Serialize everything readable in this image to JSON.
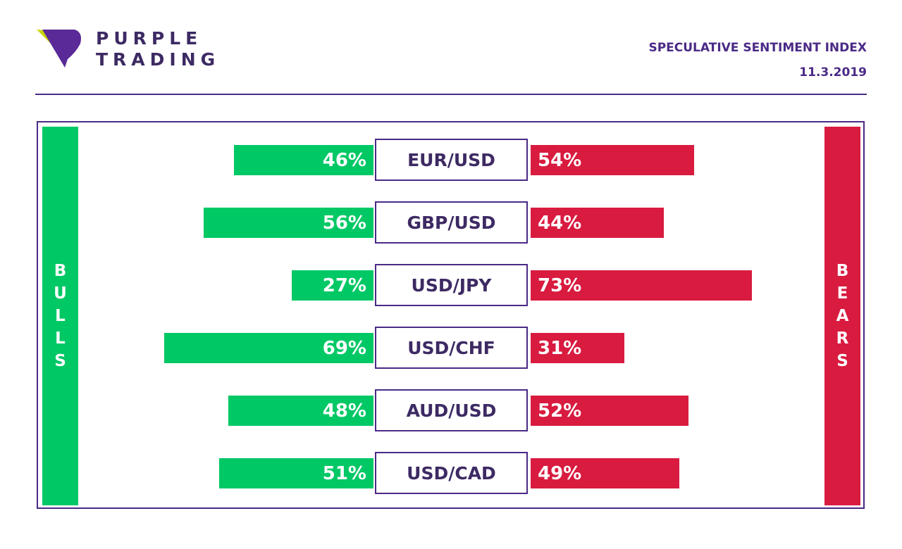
{
  "brand": {
    "line1": "PURPLE",
    "line2": "TRADING"
  },
  "header": {
    "title": "SPECULATIVE SENTIMENT INDEX",
    "date": "11.3.2019"
  },
  "sides": {
    "bulls": "BULLS",
    "bears": "BEARS"
  },
  "colors": {
    "bulls": "#00c865",
    "bears": "#d81b3f",
    "brand": "#4a2a86",
    "logo_accent": "#c8d400"
  },
  "chart_data": {
    "type": "bar",
    "categories": [
      "EUR/USD",
      "GBP/USD",
      "USD/JPY",
      "USD/CHF",
      "AUD/USD",
      "USD/CAD"
    ],
    "series": [
      {
        "name": "BULLS",
        "values": [
          46,
          56,
          27,
          69,
          48,
          51
        ],
        "labels": [
          "46%",
          "56%",
          "27%",
          "69%",
          "48%",
          "51%"
        ]
      },
      {
        "name": "BEARS",
        "values": [
          54,
          44,
          73,
          31,
          52,
          49
        ],
        "labels": [
          "54%",
          "44%",
          "73%",
          "31%",
          "52%",
          "49%"
        ]
      }
    ],
    "title": "SPECULATIVE SENTIMENT INDEX",
    "xlim": [
      0,
      100
    ]
  }
}
